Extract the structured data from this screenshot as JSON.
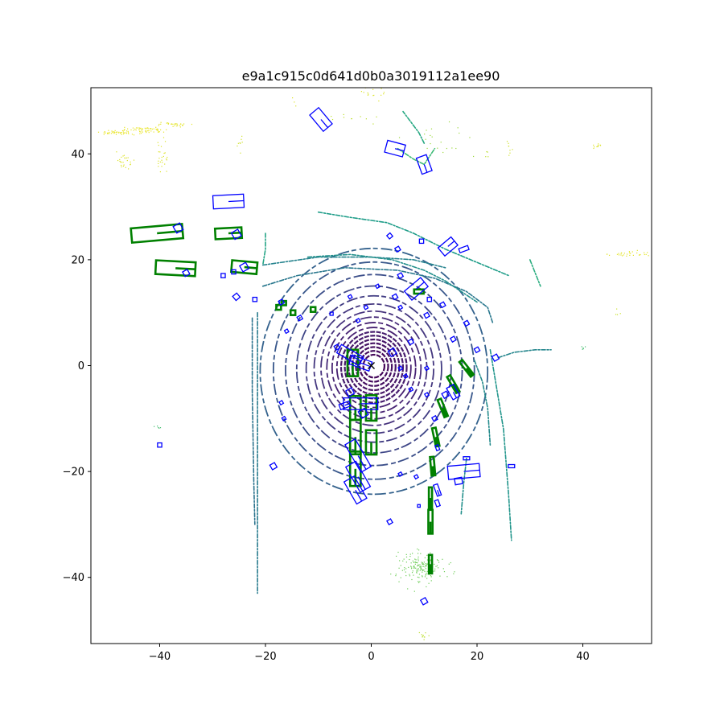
{
  "chart_data": {
    "type": "scatter",
    "title": "e9a1c915c0d641d0b0a3019112a1ee90",
    "xlabel": "",
    "ylabel": "",
    "xlim": [
      -53,
      53
    ],
    "ylim": [
      -52.5,
      52.5
    ],
    "x_ticks": [
      -40,
      -20,
      0,
      20,
      40
    ],
    "y_ticks": [
      -40,
      -20,
      0,
      20,
      40
    ],
    "grid": false,
    "legend": "none",
    "ego_marker": {
      "x": 0,
      "y": 0,
      "symbol": "x",
      "color": "#000000"
    },
    "colormap": "viridis",
    "colors": {
      "prediction_boxes": "#0000ff",
      "ground_truth_boxes": "#008000",
      "near_points": "#440154",
      "far_points": "#fde725"
    },
    "lidar_rings": [
      {
        "r": 2.0,
        "c": 0.02
      },
      {
        "r": 2.7,
        "c": 0.03
      },
      {
        "r": 3.4,
        "c": 0.04
      },
      {
        "r": 4.1,
        "c": 0.05
      },
      {
        "r": 4.8,
        "c": 0.06
      },
      {
        "r": 5.5,
        "c": 0.07
      },
      {
        "r": 6.2,
        "c": 0.08
      },
      {
        "r": 7.0,
        "c": 0.09
      },
      {
        "r": 7.9,
        "c": 0.1
      },
      {
        "r": 8.9,
        "c": 0.12
      },
      {
        "r": 10.0,
        "c": 0.14
      },
      {
        "r": 11.3,
        "c": 0.16
      },
      {
        "r": 12.8,
        "c": 0.18
      },
      {
        "r": 14.6,
        "c": 0.21
      },
      {
        "r": 16.7,
        "c": 0.24
      },
      {
        "r": 19.0,
        "c": 0.27
      },
      {
        "r": 21.5,
        "c": 0.31
      }
    ],
    "structure_curves": [
      {
        "c": 0.42,
        "points": [
          [
            -21.5,
            10
          ],
          [
            -21.5,
            -5
          ],
          [
            -21.5,
            -20
          ],
          [
            -21.5,
            -33
          ],
          [
            -21.5,
            -43
          ]
        ]
      },
      {
        "c": 0.38,
        "points": [
          [
            -22.5,
            9
          ],
          [
            -22.5,
            -5
          ],
          [
            -22.2,
            -22
          ],
          [
            -22.0,
            -30
          ]
        ]
      },
      {
        "c": 0.4,
        "points": [
          [
            -20.5,
            15
          ],
          [
            -14,
            17
          ],
          [
            -5,
            18.5
          ],
          [
            5,
            18
          ],
          [
            12,
            16.5
          ],
          [
            18,
            14
          ],
          [
            22,
            11
          ],
          [
            23,
            8
          ]
        ]
      },
      {
        "c": 0.45,
        "points": [
          [
            -20.5,
            19
          ],
          [
            -10,
            20.5
          ],
          [
            0,
            20.5
          ],
          [
            8,
            20
          ],
          [
            14,
            18.5
          ]
        ]
      },
      {
        "c": 0.55,
        "points": [
          [
            -10,
            29
          ],
          [
            -4,
            28
          ],
          [
            3,
            27
          ],
          [
            8,
            25
          ],
          [
            14,
            22
          ],
          [
            20,
            19.5
          ],
          [
            26,
            17
          ]
        ]
      },
      {
        "c": 0.5,
        "points": [
          [
            -12,
            20.5
          ],
          [
            -4,
            21
          ],
          [
            4,
            20
          ],
          [
            10,
            18
          ],
          [
            14,
            16
          ],
          [
            20,
            12
          ]
        ]
      },
      {
        "c": 0.48,
        "points": [
          [
            19.5,
            1
          ],
          [
            21,
            -3
          ],
          [
            22,
            -8
          ],
          [
            22.5,
            -15
          ]
        ]
      },
      {
        "c": 0.52,
        "points": [
          [
            22.5,
            3
          ],
          [
            23.5,
            -3
          ],
          [
            25,
            -12
          ],
          [
            26,
            -25
          ],
          [
            26.5,
            -33
          ]
        ]
      },
      {
        "c": 0.46,
        "points": [
          [
            24,
            1.5
          ],
          [
            27,
            2.5
          ],
          [
            31,
            3
          ],
          [
            34,
            3
          ]
        ]
      },
      {
        "c": 0.5,
        "points": [
          [
            18,
            -17.5
          ],
          [
            17.5,
            -22
          ],
          [
            17,
            -28
          ]
        ]
      },
      {
        "c": 0.68,
        "points": [
          [
            5,
            41
          ],
          [
            8,
            39
          ],
          [
            10,
            38
          ],
          [
            12,
            41
          ]
        ]
      },
      {
        "c": 0.62,
        "points": [
          [
            30,
            20
          ],
          [
            31,
            17.5
          ],
          [
            32,
            15
          ]
        ]
      },
      {
        "c": 0.6,
        "points": [
          [
            10,
            42
          ],
          [
            9,
            44
          ],
          [
            6,
            48
          ]
        ]
      },
      {
        "c": 0.58,
        "points": [
          [
            -20,
            25
          ],
          [
            -20,
            22
          ],
          [
            -20.5,
            19
          ]
        ]
      }
    ],
    "point_clusters": [
      {
        "x": 9.5,
        "y": -38,
        "sx": 2.2,
        "sy": 1.5,
        "n": 160,
        "c": 0.78
      },
      {
        "x": -43,
        "y": 44.5,
        "sx": 2.2,
        "sy": 0.3,
        "n": 60,
        "c": 0.97
      },
      {
        "x": -48,
        "y": 44,
        "sx": 1.5,
        "sy": 0.2,
        "n": 40,
        "c": 0.97
      },
      {
        "x": -38,
        "y": 45.5,
        "sx": 1.5,
        "sy": 0.2,
        "n": 30,
        "c": 0.96
      },
      {
        "x": -47,
        "y": 38.5,
        "sx": 1.0,
        "sy": 0.8,
        "n": 25,
        "c": 0.95
      },
      {
        "x": -39.5,
        "y": 39.5,
        "sx": 0.5,
        "sy": 1.5,
        "n": 25,
        "c": 0.95
      },
      {
        "x": 49,
        "y": 21,
        "sx": 2.5,
        "sy": 0.3,
        "n": 30,
        "c": 0.96
      },
      {
        "x": 42.5,
        "y": 41.5,
        "sx": 0.4,
        "sy": 0.3,
        "n": 10,
        "c": 0.95
      },
      {
        "x": 26,
        "y": 41,
        "sx": 0.3,
        "sy": 0.6,
        "n": 8,
        "c": 0.93
      },
      {
        "x": 0,
        "y": 52,
        "sx": 2.0,
        "sy": 0.6,
        "n": 14,
        "c": 0.95
      },
      {
        "x": 12,
        "y": 43,
        "sx": 3.0,
        "sy": 2.0,
        "n": 20,
        "c": 0.85
      },
      {
        "x": 47,
        "y": 10,
        "sx": 0.5,
        "sy": 0.5,
        "n": 4,
        "c": 0.92
      },
      {
        "x": -25,
        "y": 42,
        "sx": 0.6,
        "sy": 0.6,
        "n": 8,
        "c": 0.93
      },
      {
        "x": 10,
        "y": -51,
        "sx": 0.8,
        "sy": 0.5,
        "n": 10,
        "c": 0.9
      },
      {
        "x": -40,
        "y": -12,
        "sx": 0.3,
        "sy": 0.7,
        "n": 5,
        "c": 0.7
      },
      {
        "x": 40,
        "y": 3.5,
        "sx": 0.3,
        "sy": 0.3,
        "n": 5,
        "c": 0.7
      },
      {
        "x": -3,
        "y": 47,
        "sx": 2.5,
        "sy": 0.6,
        "n": 10,
        "c": 0.9
      },
      {
        "x": -15,
        "y": 50,
        "sx": 0.5,
        "sy": 0.3,
        "n": 3,
        "c": 0.95
      },
      {
        "x": 22,
        "y": 40,
        "sx": 0.5,
        "sy": 0.5,
        "n": 4,
        "c": 0.9
      }
    ],
    "ground_truth_boxes": [
      {
        "x": -40.5,
        "y": 25.0,
        "w": 9.7,
        "l": 2.7,
        "yaw": 5
      },
      {
        "x": -37.0,
        "y": 18.4,
        "w": 7.5,
        "l": 2.6,
        "yaw": -3
      },
      {
        "x": -27.0,
        "y": 25.0,
        "w": 5.0,
        "l": 2.0,
        "yaw": 3
      },
      {
        "x": -24.0,
        "y": 18.6,
        "w": 4.8,
        "l": 2.2,
        "yaw": -5
      },
      {
        "x": -3.5,
        "y": 0.5,
        "w": 2.0,
        "l": 5.0,
        "yaw": 0
      },
      {
        "x": 0.0,
        "y": -8.0,
        "w": 2.0,
        "l": 4.8,
        "yaw": 0
      },
      {
        "x": -3.0,
        "y": -8.0,
        "w": 2.0,
        "l": 4.5,
        "yaw": 0
      },
      {
        "x": 0.0,
        "y": -14.5,
        "w": 2.0,
        "l": 4.6,
        "yaw": 0
      },
      {
        "x": -3.0,
        "y": -13.5,
        "w": 2.0,
        "l": 6.5,
        "yaw": 0
      },
      {
        "x": -3.0,
        "y": -19.5,
        "w": 2.0,
        "l": 6.5,
        "yaw": 0
      },
      {
        "x": 11.2,
        "y": -29.5,
        "w": 0.8,
        "l": 4.5,
        "yaw": 0
      },
      {
        "x": 11.2,
        "y": -37.5,
        "w": 0.6,
        "l": 3.5,
        "yaw": 0
      },
      {
        "x": 11.2,
        "y": -25.0,
        "w": 0.6,
        "l": 4.0,
        "yaw": 0
      },
      {
        "x": 11.6,
        "y": -19.0,
        "w": 0.7,
        "l": 3.5,
        "yaw": 5
      },
      {
        "x": 12.2,
        "y": -13.5,
        "w": 0.7,
        "l": 3.5,
        "yaw": 12
      },
      {
        "x": 13.5,
        "y": -8.0,
        "w": 0.7,
        "l": 3.5,
        "yaw": 22
      },
      {
        "x": 15.5,
        "y": -3.5,
        "w": 0.7,
        "l": 3.5,
        "yaw": 30
      },
      {
        "x": 18.0,
        "y": -0.5,
        "w": 0.7,
        "l": 3.5,
        "yaw": 38
      },
      {
        "x": -17.5,
        "y": 11.0,
        "w": 0.9,
        "l": 0.9,
        "yaw": 0
      },
      {
        "x": -14.8,
        "y": 10.0,
        "w": 0.9,
        "l": 0.9,
        "yaw": 0
      },
      {
        "x": -11.0,
        "y": 10.6,
        "w": 0.9,
        "l": 0.9,
        "yaw": 0
      },
      {
        "x": -16.5,
        "y": 11.8,
        "w": 0.8,
        "l": 0.8,
        "yaw": 0
      },
      {
        "x": 9.0,
        "y": 14.0,
        "w": 1.8,
        "l": 0.8,
        "yaw": 0
      }
    ],
    "prediction_boxes": [
      {
        "x": -9.5,
        "y": 46.5,
        "w": 2.2,
        "l": 4.0,
        "yaw": 40
      },
      {
        "x": 4.5,
        "y": 41.0,
        "w": 3.5,
        "l": 2.3,
        "yaw": -15
      },
      {
        "x": 10.0,
        "y": 38.0,
        "w": 2.0,
        "l": 3.2,
        "yaw": 20
      },
      {
        "x": -27.0,
        "y": 31.0,
        "w": 5.8,
        "l": 2.5,
        "yaw": 3
      },
      {
        "x": -36.5,
        "y": 26.0,
        "w": 1.4,
        "l": 1.4,
        "yaw": 30
      },
      {
        "x": -25.5,
        "y": 24.8,
        "w": 1.4,
        "l": 1.4,
        "yaw": 30
      },
      {
        "x": -24.0,
        "y": 18.6,
        "w": 1.3,
        "l": 1.3,
        "yaw": 30
      },
      {
        "x": -35.0,
        "y": 17.5,
        "w": 1.0,
        "l": 1.0,
        "yaw": 30
      },
      {
        "x": -28.0,
        "y": 17.0,
        "w": 0.8,
        "l": 0.8,
        "yaw": 0
      },
      {
        "x": -26.0,
        "y": 17.7,
        "w": 0.8,
        "l": 0.8,
        "yaw": 0
      },
      {
        "x": -25.5,
        "y": 13.0,
        "w": 1.0,
        "l": 1.0,
        "yaw": 40
      },
      {
        "x": -22.0,
        "y": 12.5,
        "w": 0.8,
        "l": 0.8,
        "yaw": 0
      },
      {
        "x": 14.5,
        "y": 22.5,
        "w": 3.2,
        "l": 2.0,
        "yaw": 40
      },
      {
        "x": 17.5,
        "y": 22.0,
        "w": 1.8,
        "l": 0.8,
        "yaw": 20
      },
      {
        "x": 8.5,
        "y": 14.5,
        "w": 4.0,
        "l": 2.2,
        "yaw": 40
      },
      {
        "x": 3.5,
        "y": 24.5,
        "w": 0.8,
        "l": 0.8,
        "yaw": 40
      },
      {
        "x": 9.5,
        "y": 23.5,
        "w": 0.8,
        "l": 0.8,
        "yaw": 0
      },
      {
        "x": 5.0,
        "y": 22.0,
        "w": 0.8,
        "l": 0.8,
        "yaw": 30
      },
      {
        "x": 5.5,
        "y": 17.0,
        "w": 0.8,
        "l": 0.8,
        "yaw": 30
      },
      {
        "x": 1.2,
        "y": 15.0,
        "w": 0.6,
        "l": 0.6,
        "yaw": 30
      },
      {
        "x": -4.0,
        "y": 13.0,
        "w": 0.6,
        "l": 0.6,
        "yaw": 30
      },
      {
        "x": 4.5,
        "y": 13.0,
        "w": 0.8,
        "l": 0.8,
        "yaw": 30
      },
      {
        "x": 5.5,
        "y": 11.0,
        "w": 0.6,
        "l": 0.6,
        "yaw": 30
      },
      {
        "x": 11.0,
        "y": 12.5,
        "w": 0.8,
        "l": 0.8,
        "yaw": 0
      },
      {
        "x": 13.5,
        "y": 11.5,
        "w": 0.8,
        "l": 0.8,
        "yaw": 30
      },
      {
        "x": 10.5,
        "y": 9.5,
        "w": 0.8,
        "l": 0.8,
        "yaw": 30
      },
      {
        "x": 18.0,
        "y": 8.0,
        "w": 0.8,
        "l": 0.8,
        "yaw": 30
      },
      {
        "x": 15.5,
        "y": 5.0,
        "w": 0.8,
        "l": 0.8,
        "yaw": 30
      },
      {
        "x": 20.0,
        "y": 3.0,
        "w": 0.8,
        "l": 0.8,
        "yaw": 30
      },
      {
        "x": 23.5,
        "y": 1.5,
        "w": 1.0,
        "l": 1.0,
        "yaw": 30
      },
      {
        "x": -17.0,
        "y": 12.0,
        "w": 0.8,
        "l": 0.8,
        "yaw": 30
      },
      {
        "x": -13.5,
        "y": 9.0,
        "w": 0.8,
        "l": 0.8,
        "yaw": 30
      },
      {
        "x": -16.0,
        "y": 6.5,
        "w": 0.6,
        "l": 0.6,
        "yaw": 30
      },
      {
        "x": -1.0,
        "y": 11.0,
        "w": 0.6,
        "l": 0.6,
        "yaw": 30
      },
      {
        "x": -2.5,
        "y": 8.5,
        "w": 0.6,
        "l": 0.6,
        "yaw": 30
      },
      {
        "x": -7.5,
        "y": 9.8,
        "w": 0.6,
        "l": 0.6,
        "yaw": 0
      },
      {
        "x": 7.5,
        "y": 4.5,
        "w": 0.8,
        "l": 0.8,
        "yaw": 30
      },
      {
        "x": -6.5,
        "y": 3.5,
        "w": 0.8,
        "l": 0.8,
        "yaw": 30
      },
      {
        "x": -4.0,
        "y": 2.0,
        "w": 4.8,
        "l": 1.8,
        "yaw": -30
      },
      {
        "x": -2.0,
        "y": 0.5,
        "w": 4.0,
        "l": 1.8,
        "yaw": -20
      },
      {
        "x": 4.0,
        "y": 2.5,
        "w": 1.2,
        "l": 1.2,
        "yaw": 30
      },
      {
        "x": -4.0,
        "y": -5.0,
        "w": 1.2,
        "l": 1.2,
        "yaw": 30
      },
      {
        "x": -5.0,
        "y": -7.5,
        "w": 2.0,
        "l": 1.0,
        "yaw": 20
      },
      {
        "x": -2.0,
        "y": -7.2,
        "w": 6.5,
        "l": 2.2,
        "yaw": 0
      },
      {
        "x": -1.5,
        "y": -9.0,
        "w": 1.4,
        "l": 1.4,
        "yaw": 30
      },
      {
        "x": -2.5,
        "y": -17.0,
        "w": 2.2,
        "l": 6.0,
        "yaw": 30
      },
      {
        "x": -2.5,
        "y": -21.0,
        "w": 2.2,
        "l": 5.5,
        "yaw": 30
      },
      {
        "x": -3.0,
        "y": -23.5,
        "w": 2.2,
        "l": 4.8,
        "yaw": 30
      },
      {
        "x": 6.5,
        "y": -2.0,
        "w": 0.6,
        "l": 0.6,
        "yaw": 30
      },
      {
        "x": 10.5,
        "y": -5.5,
        "w": 0.6,
        "l": 0.6,
        "yaw": 30
      },
      {
        "x": 14.0,
        "y": -5.5,
        "w": 1.0,
        "l": 1.0,
        "yaw": 30
      },
      {
        "x": 15.5,
        "y": -5.0,
        "w": 1.5,
        "l": 2.5,
        "yaw": 30
      },
      {
        "x": 12.0,
        "y": -10.0,
        "w": 0.8,
        "l": 0.8,
        "yaw": 30
      },
      {
        "x": 10.5,
        "y": -0.5,
        "w": 0.6,
        "l": 0.6,
        "yaw": 30
      },
      {
        "x": 7.5,
        "y": -4.5,
        "w": 0.6,
        "l": 0.6,
        "yaw": 30
      },
      {
        "x": 17.5,
        "y": -20.0,
        "w": 6.0,
        "l": 2.5,
        "yaw": 5
      },
      {
        "x": 16.5,
        "y": -21.8,
        "w": 1.4,
        "l": 1.2,
        "yaw": 10
      },
      {
        "x": 18.0,
        "y": -17.5,
        "w": 1.2,
        "l": 0.6,
        "yaw": 0
      },
      {
        "x": 26.5,
        "y": -19.0,
        "w": 1.2,
        "l": 0.6,
        "yaw": 0
      },
      {
        "x": 12.5,
        "y": -23.5,
        "w": 0.8,
        "l": 2.2,
        "yaw": 20
      },
      {
        "x": 12.5,
        "y": -26.0,
        "w": 0.7,
        "l": 1.2,
        "yaw": 20
      },
      {
        "x": 5.5,
        "y": -20.5,
        "w": 0.6,
        "l": 0.6,
        "yaw": 30
      },
      {
        "x": 8.5,
        "y": -21.0,
        "w": 0.6,
        "l": 0.6,
        "yaw": 30
      },
      {
        "x": 3.5,
        "y": -29.5,
        "w": 0.8,
        "l": 0.8,
        "yaw": 30
      },
      {
        "x": 9.0,
        "y": -26.5,
        "w": 0.5,
        "l": 0.5,
        "yaw": 0
      },
      {
        "x": 10.0,
        "y": -44.5,
        "w": 1.0,
        "l": 1.0,
        "yaw": 30
      },
      {
        "x": -40.0,
        "y": -15.0,
        "w": 0.8,
        "l": 0.8,
        "yaw": 0
      },
      {
        "x": -18.5,
        "y": -19.0,
        "w": 1.0,
        "l": 1.0,
        "yaw": 30
      },
      {
        "x": -17.0,
        "y": -7.0,
        "w": 0.6,
        "l": 0.6,
        "yaw": 30
      },
      {
        "x": -16.5,
        "y": -10.0,
        "w": 0.6,
        "l": 0.6,
        "yaw": 30
      },
      {
        "x": 5.5,
        "y": -0.5,
        "w": 0.6,
        "l": 0.6,
        "yaw": 30
      },
      {
        "x": 12.5,
        "y": -15.5,
        "w": 0.6,
        "l": 1.0,
        "yaw": 20
      }
    ]
  }
}
